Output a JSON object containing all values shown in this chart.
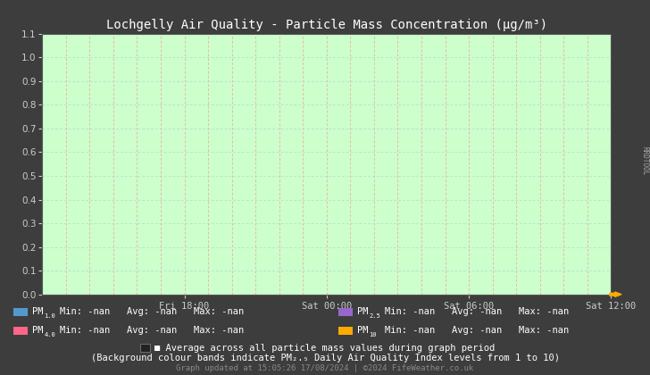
{
  "title": "Lochgelly Air Quality - Particle Mass Concentration (μg/m³)",
  "bg_color": "#3d3d3d",
  "plot_bg_color": "#ccffcc",
  "grid_color_v": "#ff9999",
  "grid_color_h": "#aaddcc",
  "ylim": [
    0.0,
    1.1
  ],
  "yticks": [
    0.0,
    0.1,
    0.2,
    0.3,
    0.4,
    0.5,
    0.6,
    0.7,
    0.8,
    0.9,
    1.0,
    1.1
  ],
  "xtick_labels": [
    "Fri 18:00",
    "Sat 00:00",
    "Sat 06:00",
    "Sat 12:00"
  ],
  "pm10_color": "#5599cc",
  "pm40_color": "#ff6688",
  "pm25_color": "#9966cc",
  "pm100_color": "#ffaa00",
  "title_color": "#ffffff",
  "tick_color": "#cccccc",
  "footer_color": "#cccccc",
  "footer_color2": "#888888",
  "arrow_color": "#ffaa00",
  "rrdtool_text": "RRDTOOL"
}
